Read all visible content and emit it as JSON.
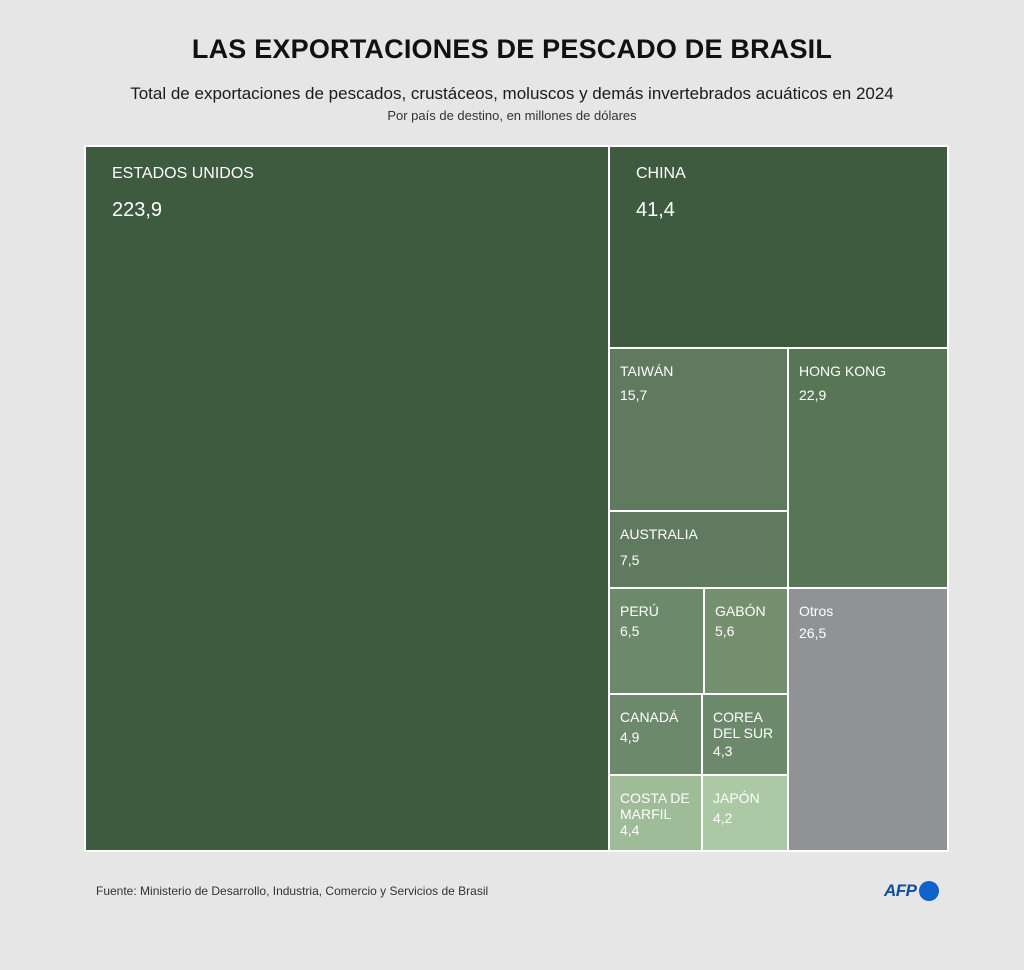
{
  "header": {
    "title": "LAS EXPORTACIONES DE PESCADO DE BRASIL",
    "subtitle": "Total de exportaciones de pescados, crustáceos, moluscos y demás invertebrados acuáticos en 2024",
    "subtitle2": "Por país de destino, en millones de dólares"
  },
  "footer": {
    "source": "Fuente: Ministerio de Desarrollo, Industria, Comercio y Servicios de Brasil",
    "logo_text": "AFP"
  },
  "colors": {
    "dark_green": "#3e5a3f",
    "mid_green": "#5f7a5f",
    "light_mid_green": "#6c8a6b",
    "pale_green": "#9ebc98",
    "palest_green": "#acc9a6",
    "grey": "#919295",
    "hk_green": "#587656"
  },
  "chart_data": {
    "type": "treemap",
    "title": "LAS EXPORTACIONES DE PESCADO DE BRASIL",
    "unit": "millones de dólares",
    "items": [
      {
        "name": "ESTADOS UNIDOS",
        "value_label": "223,9",
        "value": 223.9
      },
      {
        "name": "CHINA",
        "value_label": "41,4",
        "value": 41.4
      },
      {
        "name": "TAIWÁN",
        "value_label": "15,7",
        "value": 15.7
      },
      {
        "name": "HONG KONG",
        "value_label": "22,9",
        "value": 22.9
      },
      {
        "name": "AUSTRALIA",
        "value_label": "7,5",
        "value": 7.5
      },
      {
        "name": "PERÚ",
        "value_label": "6,5",
        "value": 6.5
      },
      {
        "name": "GABÓN",
        "value_label": "5,6",
        "value": 5.6
      },
      {
        "name": "Otros",
        "value_label": "26,5",
        "value": 26.5
      },
      {
        "name": "CANADÁ",
        "value_label": "4,9",
        "value": 4.9
      },
      {
        "name": "COREA DEL SUR",
        "value_label": "4,3",
        "value": 4.3
      },
      {
        "name": "COSTA DE MARFIL",
        "value_label": "4,4",
        "value": 4.4
      },
      {
        "name": "JAPÓN",
        "value_label": "4,2",
        "value": 4.2
      }
    ]
  }
}
